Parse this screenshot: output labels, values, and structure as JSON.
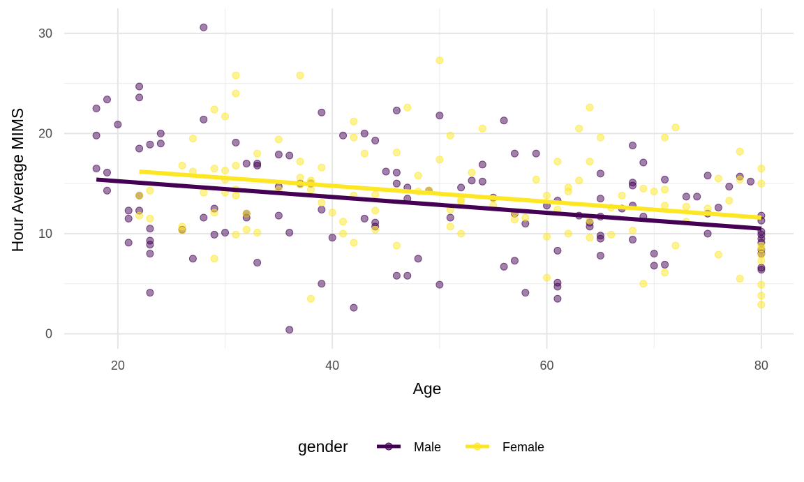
{
  "chart_data": {
    "type": "scatter",
    "title": "",
    "xlabel": "Age",
    "ylabel": "Hour Average MIMS",
    "xlim": [
      15,
      83
    ],
    "ylim": [
      -1.5,
      32.5
    ],
    "xticks": [
      20,
      40,
      60,
      80
    ],
    "yticks": [
      0,
      10,
      20,
      30
    ],
    "grid": true,
    "legend_position": "bottom",
    "legend_title": "gender",
    "point_opacity": 0.5,
    "series": [
      {
        "name": "Male",
        "color": "#440154",
        "trend": {
          "x": [
            18,
            80
          ],
          "y": [
            15.4,
            10.5
          ]
        },
        "points": [
          [
            18,
            22.5
          ],
          [
            18,
            19.8
          ],
          [
            18,
            16.5
          ],
          [
            19,
            23.4
          ],
          [
            19,
            16.1
          ],
          [
            19,
            14.3
          ],
          [
            20,
            20.9
          ],
          [
            21,
            12.3
          ],
          [
            21,
            11.5
          ],
          [
            21,
            9.1
          ],
          [
            22,
            24.7
          ],
          [
            22,
            23.6
          ],
          [
            22,
            18.5
          ],
          [
            22,
            13.8
          ],
          [
            22,
            12.3
          ],
          [
            23,
            18.9
          ],
          [
            23,
            10.5
          ],
          [
            23,
            9.3
          ],
          [
            23,
            8.9
          ],
          [
            23,
            8.0
          ],
          [
            23,
            4.1
          ],
          [
            24,
            20.0
          ],
          [
            24,
            19.0
          ],
          [
            26,
            10.4
          ],
          [
            27,
            7.5
          ],
          [
            28,
            30.6
          ],
          [
            28,
            21.4
          ],
          [
            28,
            11.6
          ],
          [
            29,
            12.5
          ],
          [
            29,
            9.9
          ],
          [
            30,
            10.1
          ],
          [
            31,
            19.1
          ],
          [
            32,
            17.0
          ],
          [
            32,
            12.0
          ],
          [
            32,
            11.6
          ],
          [
            33,
            17.0
          ],
          [
            33,
            16.8
          ],
          [
            33,
            7.1
          ],
          [
            35,
            17.9
          ],
          [
            35,
            14.7
          ],
          [
            35,
            11.8
          ],
          [
            36,
            17.8
          ],
          [
            36,
            10.1
          ],
          [
            36,
            0.4
          ],
          [
            37,
            15.0
          ],
          [
            38,
            15.0
          ],
          [
            39,
            22.1
          ],
          [
            39,
            12.4
          ],
          [
            39,
            5.0
          ],
          [
            40,
            9.6
          ],
          [
            41,
            19.8
          ],
          [
            42,
            2.6
          ],
          [
            43,
            20.0
          ],
          [
            43,
            11.5
          ],
          [
            44,
            19.3
          ],
          [
            44,
            11.1
          ],
          [
            44,
            10.7
          ],
          [
            45,
            16.2
          ],
          [
            46,
            22.3
          ],
          [
            46,
            16.1
          ],
          [
            46,
            15.0
          ],
          [
            46,
            5.8
          ],
          [
            47,
            14.6
          ],
          [
            47,
            13.5
          ],
          [
            47,
            5.8
          ],
          [
            48,
            7.5
          ],
          [
            49,
            14.3
          ],
          [
            50,
            21.8
          ],
          [
            50,
            4.9
          ],
          [
            51,
            11.6
          ],
          [
            52,
            14.6
          ],
          [
            53,
            15.3
          ],
          [
            54,
            16.9
          ],
          [
            54,
            15.2
          ],
          [
            55,
            13.6
          ],
          [
            56,
            21.3
          ],
          [
            56,
            6.7
          ],
          [
            57,
            18.0
          ],
          [
            57,
            12.0
          ],
          [
            57,
            7.3
          ],
          [
            58,
            11.0
          ],
          [
            58,
            4.1
          ],
          [
            59,
            18.0
          ],
          [
            60,
            12.8
          ],
          [
            61,
            13.3
          ],
          [
            61,
            8.3
          ],
          [
            61,
            5.1
          ],
          [
            61,
            4.7
          ],
          [
            61,
            3.5
          ],
          [
            63,
            11.8
          ],
          [
            64,
            11.1
          ],
          [
            64,
            10.7
          ],
          [
            65,
            16.0
          ],
          [
            65,
            13.5
          ],
          [
            65,
            11.7
          ],
          [
            65,
            9.8
          ],
          [
            65,
            9.5
          ],
          [
            65,
            7.8
          ],
          [
            67,
            12.5
          ],
          [
            68,
            18.8
          ],
          [
            68,
            15.1
          ],
          [
            68,
            14.8
          ],
          [
            68,
            12.8
          ],
          [
            68,
            9.4
          ],
          [
            69,
            17.1
          ],
          [
            69,
            11.7
          ],
          [
            70,
            8.0
          ],
          [
            70,
            6.8
          ],
          [
            71,
            15.4
          ],
          [
            71,
            6.9
          ],
          [
            73,
            13.7
          ],
          [
            74,
            13.7
          ],
          [
            75,
            15.8
          ],
          [
            75,
            12.0
          ],
          [
            75,
            10.0
          ],
          [
            76,
            12.6
          ],
          [
            77,
            14.7
          ],
          [
            78,
            15.7
          ],
          [
            79,
            15.2
          ],
          [
            80,
            11.8
          ],
          [
            80,
            11.3
          ],
          [
            80,
            10.2
          ],
          [
            80,
            9.9
          ],
          [
            80,
            9.5
          ],
          [
            80,
            9.1
          ],
          [
            80,
            8.4
          ],
          [
            80,
            8.0
          ],
          [
            80,
            6.6
          ],
          [
            80,
            6.4
          ]
        ]
      },
      {
        "name": "Female",
        "color": "#fde725",
        "trend": {
          "x": [
            22,
            80
          ],
          "y": [
            16.2,
            11.6
          ]
        },
        "points": [
          [
            22,
            13.8
          ],
          [
            22,
            11.8
          ],
          [
            23,
            14.3
          ],
          [
            23,
            11.5
          ],
          [
            26,
            16.8
          ],
          [
            26,
            10.7
          ],
          [
            26,
            10.3
          ],
          [
            27,
            19.5
          ],
          [
            27,
            16.2
          ],
          [
            28,
            14.1
          ],
          [
            29,
            22.4
          ],
          [
            29,
            16.5
          ],
          [
            29,
            12.1
          ],
          [
            29,
            7.5
          ],
          [
            30,
            21.7
          ],
          [
            30,
            16.3
          ],
          [
            30,
            15.4
          ],
          [
            30,
            14.1
          ],
          [
            31,
            25.8
          ],
          [
            31,
            24.0
          ],
          [
            31,
            16.8
          ],
          [
            31,
            14.4
          ],
          [
            31,
            13.8
          ],
          [
            31,
            9.9
          ],
          [
            32,
            12.0
          ],
          [
            32,
            10.4
          ],
          [
            33,
            18.0
          ],
          [
            33,
            10.1
          ],
          [
            35,
            19.4
          ],
          [
            35,
            14.4
          ],
          [
            37,
            25.8
          ],
          [
            37,
            17.2
          ],
          [
            37,
            15.6
          ],
          [
            37,
            14.9
          ],
          [
            38,
            15.3
          ],
          [
            38,
            15.1
          ],
          [
            38,
            14.4
          ],
          [
            38,
            3.5
          ],
          [
            39,
            16.6
          ],
          [
            39,
            13.1
          ],
          [
            40,
            12.1
          ],
          [
            41,
            11.2
          ],
          [
            41,
            10.0
          ],
          [
            42,
            21.2
          ],
          [
            42,
            19.6
          ],
          [
            42,
            13.8
          ],
          [
            42,
            9.1
          ],
          [
            43,
            18.0
          ],
          [
            44,
            13.9
          ],
          [
            44,
            12.3
          ],
          [
            44,
            10.4
          ],
          [
            46,
            18.1
          ],
          [
            46,
            8.8
          ],
          [
            47,
            22.6
          ],
          [
            48,
            15.8
          ],
          [
            48,
            14.2
          ],
          [
            49,
            14.3
          ],
          [
            50,
            27.3
          ],
          [
            50,
            17.4
          ],
          [
            51,
            19.8
          ],
          [
            51,
            12.4
          ],
          [
            51,
            10.7
          ],
          [
            52,
            13.4
          ],
          [
            52,
            13.2
          ],
          [
            52,
            10.0
          ],
          [
            53,
            16.1
          ],
          [
            54,
            20.5
          ],
          [
            55,
            13.5
          ],
          [
            55,
            12.8
          ],
          [
            57,
            12.1
          ],
          [
            57,
            11.4
          ],
          [
            58,
            11.6
          ],
          [
            59,
            15.4
          ],
          [
            60,
            13.8
          ],
          [
            60,
            9.7
          ],
          [
            60,
            5.6
          ],
          [
            61,
            17.2
          ],
          [
            61,
            12.4
          ],
          [
            62,
            14.6
          ],
          [
            62,
            14.2
          ],
          [
            62,
            10.0
          ],
          [
            63,
            20.5
          ],
          [
            63,
            15.3
          ],
          [
            64,
            22.6
          ],
          [
            64,
            17.2
          ],
          [
            64,
            11.3
          ],
          [
            64,
            9.6
          ],
          [
            65,
            19.6
          ],
          [
            66,
            12.6
          ],
          [
            66,
            9.9
          ],
          [
            67,
            13.8
          ],
          [
            68,
            10.3
          ],
          [
            69,
            14.5
          ],
          [
            69,
            5.0
          ],
          [
            70,
            14.2
          ],
          [
            71,
            19.6
          ],
          [
            71,
            14.4
          ],
          [
            71,
            12.8
          ],
          [
            71,
            6.1
          ],
          [
            72,
            20.6
          ],
          [
            72,
            8.8
          ],
          [
            73,
            12.7
          ],
          [
            73,
            11.2
          ],
          [
            75,
            12.5
          ],
          [
            76,
            15.5
          ],
          [
            76,
            7.9
          ],
          [
            77,
            13.3
          ],
          [
            78,
            18.2
          ],
          [
            78,
            15.4
          ],
          [
            78,
            5.5
          ],
          [
            80,
            16.5
          ],
          [
            80,
            15.0
          ],
          [
            80,
            8.8
          ],
          [
            80,
            8.5
          ],
          [
            80,
            7.9
          ],
          [
            80,
            7.3
          ],
          [
            80,
            4.9
          ],
          [
            80,
            3.8
          ],
          [
            80,
            2.9
          ]
        ]
      }
    ]
  }
}
